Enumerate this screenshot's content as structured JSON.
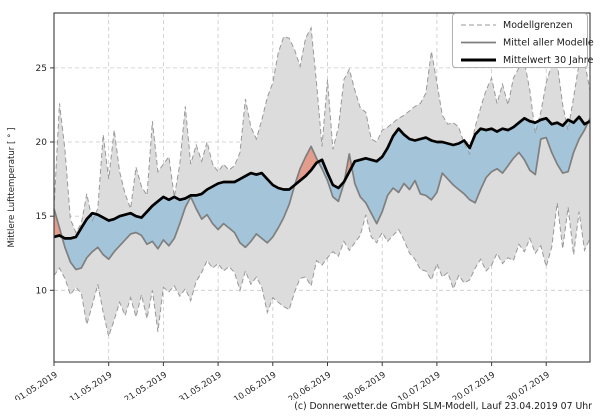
{
  "figure": {
    "background": "#ffffff",
    "copyright": "(c) Donnerwetter.de GmbH SLM-Modell, Lauf 23.04.2019 07 Uhr"
  },
  "legend": {
    "position": "upper-right",
    "items": [
      {
        "label": "Modellgrenzen",
        "style": "dashed",
        "color": "#999999"
      },
      {
        "label": "Mittel aller Modelle",
        "style": "solid",
        "color": "#7f7f7f"
      },
      {
        "label": "Mittelwert 30 Jahre",
        "style": "thick",
        "color": "#000000"
      }
    ]
  },
  "chart_data": {
    "type": "line",
    "title": "",
    "xlabel": "",
    "ylabel": "Mittlere Lufttemperatur [ ° ]",
    "x_unit": "date",
    "x_start": "01.05.2019",
    "x_step_days": 1,
    "x_tick_labels": [
      "01.05.2019",
      "11.05.2019",
      "21.05.2019",
      "31.05.2019",
      "10.06.2019",
      "20.06.2019",
      "30.06.2019",
      "10.07.2019",
      "20.07.2019",
      "30.07.2019"
    ],
    "x_tick_day_index": [
      0,
      10,
      20,
      30,
      40,
      50,
      60,
      70,
      80,
      90
    ],
    "yticks": [
      10,
      15,
      20,
      25
    ],
    "ylim": [
      5.1,
      28.7
    ],
    "grid": true,
    "colors": {
      "band_fill": "#dcdcdc",
      "band_edge": "#999999",
      "model_mean_line": "#7f7f7f",
      "climate_mean_line": "#000000",
      "cooler_fill": "rgba(107,174,214,0.50)",
      "warmer_fill": "rgba(233,105,74,0.55)",
      "gridline": "#c9c9c9",
      "spine": "#3a3a3a",
      "text": "#262626"
    },
    "series": [
      {
        "name": "Modellgrenzen (obere Grenze)",
        "role": "upper_bound",
        "values": [
          15.5,
          22.6,
          19.5,
          14.8,
          13.9,
          14.5,
          16.5,
          14.7,
          15.5,
          20.5,
          17.5,
          20.8,
          18.0,
          16.5,
          15.5,
          18.3,
          17.0,
          16.4,
          21.4,
          18.0,
          18.5,
          19.0,
          16.3,
          18.5,
          22.4,
          18.5,
          19.8,
          18.7,
          20.0,
          18.5,
          18.0,
          18.5,
          18.1,
          18.4,
          19.3,
          22.9,
          21.0,
          20.2,
          21.5,
          23.0,
          24.0,
          26.0,
          27.1,
          27.0,
          26.2,
          25.1,
          27.0,
          27.7,
          24.0,
          19.7,
          24.2,
          19.5,
          21.0,
          24.2,
          24.9,
          23.5,
          22.3,
          22.0,
          20.2,
          20.0,
          20.8,
          21.0,
          21.3,
          21.6,
          21.8,
          22.1,
          22.4,
          22.6,
          23.3,
          26.1,
          24.0,
          21.8,
          21.2,
          21.3,
          21.0,
          19.9,
          19.2,
          21.0,
          22.3,
          23.5,
          24.3,
          22.6,
          23.9,
          22.5,
          24.3,
          25.0,
          25.4,
          23.5,
          20.6,
          22.0,
          24.0,
          25.2,
          25.3,
          22.5,
          20.8,
          23.0,
          25.3,
          25.4,
          23.5
        ]
      },
      {
        "name": "Modellgrenzen (untere Grenze)",
        "role": "lower_bound",
        "values": [
          11.0,
          11.5,
          10.8,
          9.7,
          10.2,
          9.8,
          7.7,
          9.0,
          10.4,
          8.5,
          6.9,
          8.0,
          9.2,
          8.3,
          9.5,
          8.2,
          9.7,
          8.1,
          10.0,
          7.2,
          10.2,
          9.9,
          10.3,
          9.6,
          10.1,
          9.3,
          10.6,
          11.2,
          12.0,
          11.5,
          11.8,
          11.3,
          11.6,
          11.2,
          10.0,
          11.3,
          10.4,
          10.9,
          10.2,
          8.5,
          9.5,
          9.2,
          8.9,
          8.7,
          9.9,
          10.8,
          10.9,
          10.3,
          12.0,
          11.7,
          12.2,
          12.6,
          12.3,
          13.3,
          12.7,
          13.2,
          13.7,
          15.1,
          13.6,
          13.2,
          13.9,
          13.3,
          13.7,
          14.1,
          13.4,
          12.5,
          12.1,
          11.4,
          11.3,
          10.7,
          11.8,
          10.9,
          11.2,
          10.1,
          11.0,
          10.5,
          10.7,
          11.5,
          12.1,
          11.3,
          11.7,
          12.5,
          11.8,
          12.2,
          12.0,
          13.1,
          12.6,
          13.5,
          12.5,
          13.0,
          11.6,
          12.9,
          15.9,
          12.8,
          15.6,
          12.4,
          15.3,
          12.7,
          13.5
        ]
      },
      {
        "name": "Mittel aller Modelle",
        "role": "model_mean",
        "values": [
          15.5,
          14.2,
          12.9,
          11.9,
          11.4,
          11.5,
          12.2,
          12.6,
          12.9,
          12.4,
          12.1,
          12.6,
          13.0,
          13.4,
          13.8,
          13.9,
          13.7,
          13.1,
          13.3,
          12.8,
          13.4,
          13.0,
          13.5,
          14.5,
          15.6,
          16.3,
          15.5,
          14.8,
          15.1,
          14.5,
          14.1,
          14.5,
          14.2,
          13.9,
          13.2,
          12.9,
          13.3,
          13.8,
          13.5,
          13.2,
          13.6,
          14.2,
          14.9,
          15.8,
          17.1,
          18.2,
          19.0,
          19.7,
          18.9,
          18.2,
          17.4,
          16.3,
          16.0,
          17.2,
          19.2,
          17.2,
          16.3,
          15.9,
          15.2,
          14.5,
          15.3,
          16.4,
          16.9,
          16.6,
          17.2,
          16.8,
          17.4,
          16.5,
          16.4,
          16.1,
          16.6,
          17.9,
          17.5,
          17.1,
          16.8,
          16.5,
          16.1,
          15.9,
          16.8,
          17.6,
          18.0,
          18.2,
          17.9,
          18.4,
          18.9,
          19.3,
          18.8,
          18.1,
          17.8,
          20.2,
          20.3,
          19.3,
          18.5,
          17.9,
          18.0,
          19.3,
          20.2,
          20.8,
          21.6
        ]
      },
      {
        "name": "Mittelwert 30 Jahre",
        "role": "climate_mean",
        "values": [
          13.6,
          13.7,
          13.5,
          13.5,
          13.6,
          14.2,
          14.8,
          15.2,
          15.1,
          14.9,
          14.7,
          14.8,
          15.0,
          15.1,
          15.2,
          15.0,
          14.9,
          15.3,
          15.7,
          16.0,
          16.3,
          16.1,
          16.3,
          16.1,
          16.2,
          16.4,
          16.4,
          16.5,
          16.8,
          17.0,
          17.2,
          17.3,
          17.3,
          17.3,
          17.5,
          17.7,
          17.9,
          17.8,
          17.9,
          17.5,
          17.1,
          16.9,
          16.8,
          16.8,
          17.1,
          17.4,
          17.7,
          18.1,
          18.6,
          18.8,
          17.9,
          17.1,
          16.9,
          17.3,
          18.0,
          18.7,
          18.8,
          18.9,
          18.8,
          18.7,
          19.0,
          19.6,
          20.4,
          20.9,
          20.5,
          20.2,
          20.1,
          20.2,
          20.3,
          20.1,
          20.0,
          20.0,
          19.9,
          19.8,
          19.9,
          20.1,
          19.6,
          20.5,
          20.9,
          20.8,
          20.9,
          20.7,
          20.9,
          20.8,
          21.0,
          21.3,
          21.6,
          21.4,
          21.3,
          21.5,
          21.6,
          21.2,
          21.3,
          21.1,
          21.5,
          21.3,
          21.7,
          21.2,
          21.4
        ]
      }
    ],
    "legend_entries": [
      "Modellgrenzen",
      "Mittel aller Modelle",
      "Mittelwert 30 Jahre"
    ]
  }
}
